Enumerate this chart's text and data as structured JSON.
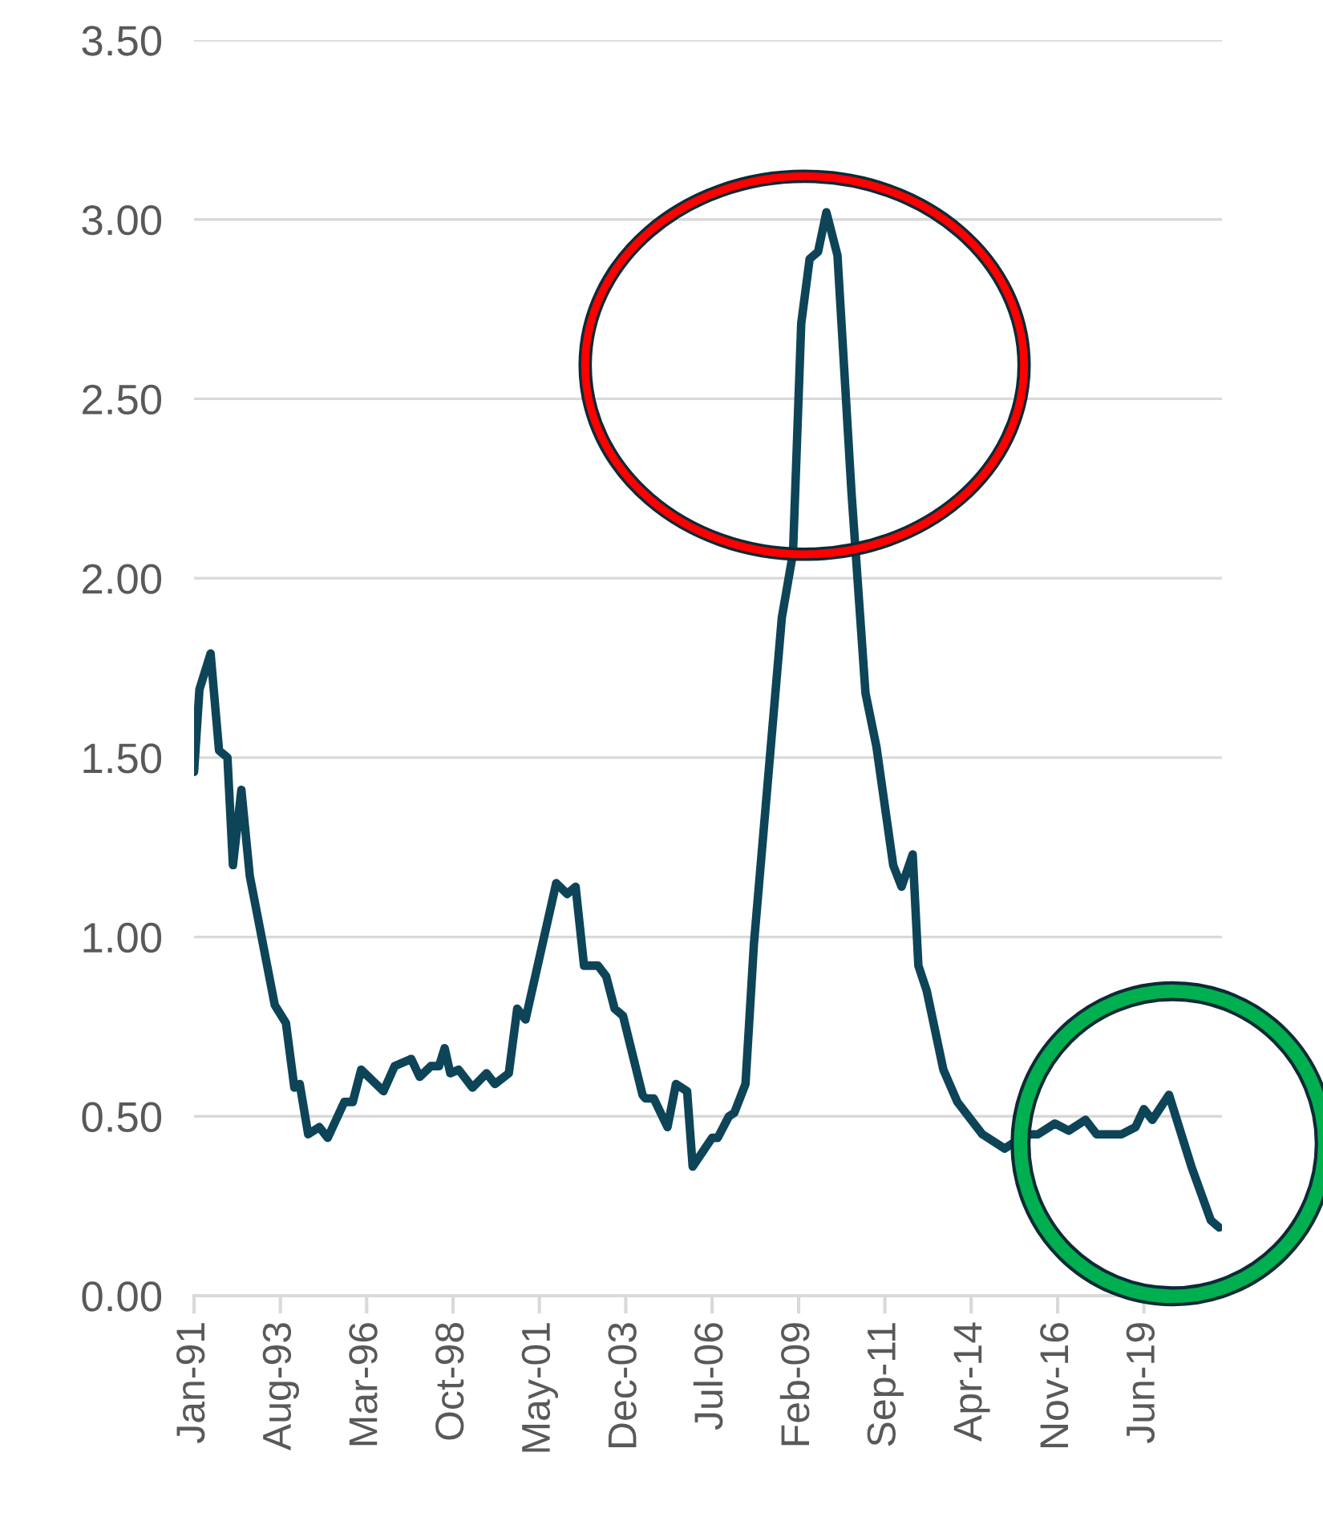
{
  "chart_data": {
    "type": "line",
    "x": [
      "1991-01",
      "1991-03",
      "1991-07",
      "1991-10",
      "1992-01",
      "1992-03",
      "1992-06",
      "1992-09",
      "1993-06",
      "1993-10",
      "1994-01",
      "1994-03",
      "1994-06",
      "1994-10",
      "1995-01",
      "1995-07",
      "1995-10",
      "1996-01",
      "1996-09",
      "1997-01",
      "1997-07",
      "1997-10",
      "1998-02",
      "1998-05",
      "1998-07",
      "1998-09",
      "1998-12",
      "1999-05",
      "1999-10",
      "2000-01",
      "2000-06",
      "2000-09",
      "2000-12",
      "2001-11",
      "2002-03",
      "2002-06",
      "2002-09",
      "2003-02",
      "2003-05",
      "2003-08",
      "2003-11",
      "2004-06",
      "2004-07",
      "2004-10",
      "2005-03",
      "2005-06",
      "2005-10",
      "2005-12",
      "2006-07",
      "2006-09",
      "2007-01",
      "2007-03",
      "2007-07",
      "2007-10",
      "2008-08",
      "2008-12",
      "2009-03",
      "2009-06",
      "2009-09",
      "2009-12",
      "2010-04",
      "2010-09",
      "2011-02",
      "2011-06",
      "2011-12",
      "2012-03",
      "2012-07",
      "2012-09",
      "2012-12",
      "2013-06",
      "2013-11",
      "2014-08",
      "2015-04",
      "2015-12",
      "2016-04",
      "2016-10",
      "2017-03",
      "2017-09",
      "2018-01",
      "2018-10",
      "2019-03",
      "2019-06",
      "2019-09",
      "2020-03",
      "2020-11",
      "2021-06",
      "2021-09"
    ],
    "series": [
      {
        "color": "#0d4458",
        "values": [
          1.46,
          1.69,
          1.79,
          1.52,
          1.5,
          1.2,
          1.41,
          1.17,
          0.81,
          0.76,
          0.58,
          0.59,
          0.45,
          0.47,
          0.44,
          0.54,
          0.54,
          0.63,
          0.57,
          0.64,
          0.66,
          0.61,
          0.64,
          0.64,
          0.69,
          0.62,
          0.63,
          0.58,
          0.62,
          0.59,
          0.62,
          0.8,
          0.77,
          1.15,
          1.12,
          1.14,
          0.92,
          0.92,
          0.89,
          0.8,
          0.78,
          0.56,
          0.55,
          0.55,
          0.47,
          0.59,
          0.57,
          0.36,
          0.44,
          0.44,
          0.5,
          0.51,
          0.59,
          0.98,
          1.89,
          2.07,
          2.71,
          2.89,
          2.91,
          3.02,
          2.9,
          2.24,
          1.68,
          1.53,
          1.2,
          1.14,
          1.23,
          0.92,
          0.85,
          0.63,
          0.54,
          0.45,
          0.41,
          0.45,
          0.45,
          0.48,
          0.46,
          0.49,
          0.45,
          0.45,
          0.47,
          0.52,
          0.49,
          0.56,
          0.36,
          0.21,
          0.19
        ]
      }
    ],
    "xlim": [
      "1991-01",
      "2021-10"
    ],
    "xticks": [
      {
        "value": "1991-01",
        "label": "Jan-91"
      },
      {
        "value": "1993-08",
        "label": "Aug-93"
      },
      {
        "value": "1996-03",
        "label": "Mar-96"
      },
      {
        "value": "1998-10",
        "label": "Oct-98"
      },
      {
        "value": "2001-05",
        "label": "May-01"
      },
      {
        "value": "2003-12",
        "label": "Dec-03"
      },
      {
        "value": "2006-07",
        "label": "Jul-06"
      },
      {
        "value": "2009-02",
        "label": "Feb-09"
      },
      {
        "value": "2011-09",
        "label": "Sep-11"
      },
      {
        "value": "2014-04",
        "label": "Apr-14"
      },
      {
        "value": "2016-11",
        "label": "Nov-16"
      },
      {
        "value": "2019-06",
        "label": "Jun-19"
      }
    ],
    "ylim": [
      0,
      3.5
    ],
    "yticks": [
      {
        "value": 0,
        "label": "0.00"
      },
      {
        "value": 0.5,
        "label": "0.50"
      },
      {
        "value": 1,
        "label": "1.00"
      },
      {
        "value": 1.5,
        "label": "1.50"
      },
      {
        "value": 2,
        "label": "2.00"
      },
      {
        "value": 2.5,
        "label": "2.50"
      },
      {
        "value": 3,
        "label": "3.00"
      },
      {
        "value": 3.5,
        "label": "3.50"
      }
    ],
    "grid": "y",
    "marker": "none",
    "line_style": "solid"
  }
}
